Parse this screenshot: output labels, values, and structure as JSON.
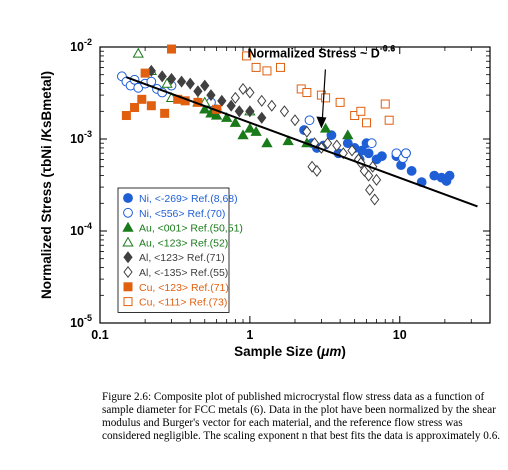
{
  "chart_data": {
    "type": "scatter",
    "xlabel_prefix": "Sample Size  (",
    "xlabel_unit": "μm",
    "xlabel_suffix": ")",
    "ylabel": "Normalized Stress  (τbNi /KsBmetal)",
    "xscale": "log",
    "yscale": "log",
    "xlim": [
      0.1,
      40
    ],
    "ylim": [
      1e-05,
      0.01
    ],
    "x_ticks": [
      0.1,
      1,
      10
    ],
    "x_tick_labels": [
      "0.1",
      "1",
      "10"
    ],
    "y_ticks": [
      1e-05,
      0.0001,
      0.001,
      0.01
    ],
    "y_tick_labels": [
      {
        "base": "10",
        "exp": "-5"
      },
      {
        "base": "10",
        "exp": "-4"
      },
      {
        "base": "10",
        "exp": "-3"
      },
      {
        "base": "10",
        "exp": "-2"
      }
    ],
    "grid": false,
    "legend_position": "bottom-left",
    "annotation": {
      "text_main": "Normalized Stress ~ D",
      "text_exp": "-0.6",
      "arrow_to": [
        3.0,
        0.0013
      ],
      "text_at": [
        3.0,
        0.0063
      ]
    },
    "fit_line": {
      "x": [
        0.15,
        33
      ],
      "y": [
        0.0047,
        0.000185
      ],
      "color": "#000000"
    },
    "series": [
      {
        "name": "Ni, <-269> Ref.(8,68)",
        "marker": "circle",
        "filled": true,
        "color": "#1f5fd6",
        "x": [
          2.3,
          2.6,
          2.8,
          3.1,
          3.5,
          3.9,
          4.5,
          5.0,
          5.6,
          6.2,
          7.0,
          7.6,
          9.5,
          10.2,
          11.0,
          12.0,
          17.0,
          19.0,
          20.5,
          21.5,
          14.0,
          6.0,
          5.4
        ],
        "y": [
          0.00125,
          0.0009,
          0.0008,
          0.00085,
          0.0011,
          0.0007,
          0.0009,
          0.0008,
          0.00075,
          0.0007,
          0.0006,
          0.00065,
          0.00065,
          0.00052,
          0.0007,
          0.00045,
          0.0004,
          0.00038,
          0.00035,
          0.0004,
          0.00034,
          0.0009,
          0.0006
        ]
      },
      {
        "name": "Ni, <556> Ref.(70)",
        "marker": "circle",
        "filled": false,
        "color": "#1f5fd6",
        "x": [
          0.14,
          0.15,
          0.16,
          0.17,
          0.18,
          0.2,
          0.22,
          0.24,
          0.26,
          0.3,
          0.55,
          0.6,
          2.5,
          6.5,
          9.5,
          10.5,
          11.0
        ],
        "y": [
          0.0048,
          0.0042,
          0.0038,
          0.0044,
          0.0036,
          0.004,
          0.0042,
          0.0035,
          0.0032,
          0.0038,
          0.0025,
          0.0021,
          0.0016,
          0.0009,
          0.0007,
          0.00062,
          0.0007
        ]
      },
      {
        "name": "Au, <001> Ref.(50,51)",
        "marker": "triangle",
        "filled": true,
        "color": "#1a7a1a",
        "x": [
          0.45,
          0.5,
          0.55,
          0.6,
          0.7,
          0.8,
          0.9,
          1.0,
          1.1,
          1.3,
          1.8,
          2.4,
          3.2,
          4.5
        ],
        "y": [
          0.0025,
          0.0021,
          0.0019,
          0.0018,
          0.0017,
          0.0015,
          0.0011,
          0.0013,
          0.0012,
          0.0009,
          0.00095,
          0.0009,
          0.0013,
          0.0011
        ]
      },
      {
        "name": "Au, <123> Ref.(52)",
        "marker": "triangle",
        "filled": false,
        "color": "#1a7a1a",
        "x": [
          0.18,
          0.22,
          0.28,
          0.3,
          0.5,
          1.0
        ],
        "y": [
          0.0085,
          0.0055,
          0.004,
          0.0028,
          0.0025,
          0.002
        ]
      },
      {
        "name": "Al, <123> Ref.(71)",
        "marker": "diamond",
        "filled": true,
        "color": "#404040",
        "x": [
          0.22,
          0.26,
          0.3,
          0.35,
          0.4,
          0.45,
          0.5,
          0.55,
          0.65,
          0.75,
          0.85,
          1.0,
          1.2
        ],
        "y": [
          0.0055,
          0.0048,
          0.0045,
          0.0042,
          0.004,
          0.0033,
          0.0038,
          0.003,
          0.0026,
          0.0023,
          0.002,
          0.002,
          0.0017
        ]
      },
      {
        "name": "Al, <-135> Ref.(55)",
        "marker": "diamond",
        "filled": false,
        "color": "#404040",
        "x": [
          0.8,
          0.9,
          1.0,
          1.2,
          1.4,
          1.7,
          2.0,
          2.4,
          2.7,
          3.0,
          3.3,
          3.8,
          4.2,
          4.8,
          5.3,
          5.8,
          6.2,
          6.6,
          7.0,
          2.6,
          2.8,
          6.3,
          6.8,
          5.5
        ],
        "y": [
          0.0028,
          0.0035,
          0.0032,
          0.0026,
          0.0023,
          0.002,
          0.0016,
          0.0012,
          0.0009,
          0.0008,
          0.0009,
          0.00085,
          0.0007,
          0.00075,
          0.0006,
          0.00045,
          0.0004,
          0.0005,
          0.00036,
          0.0005,
          0.00045,
          0.00028,
          0.00022,
          0.00055
        ]
      },
      {
        "name": "Cu, <123> Ref.(71)",
        "marker": "square",
        "filled": true,
        "color": "#e06010",
        "x": [
          0.15,
          0.17,
          0.19,
          0.2,
          0.22,
          0.27,
          0.3,
          0.33,
          0.37,
          0.45,
          0.6
        ],
        "y": [
          0.0018,
          0.0022,
          0.0027,
          0.0052,
          0.0023,
          0.0019,
          0.0095,
          0.0027,
          0.0026,
          0.0025,
          0.0021
        ]
      },
      {
        "name": "Cu, <111> Ref.(73)",
        "marker": "square",
        "filled": false,
        "color": "#e06010",
        "x": [
          0.95,
          1.1,
          1.3,
          1.6,
          2.2,
          2.4,
          3.0,
          3.2,
          4.0,
          5.0,
          5.5,
          6.0,
          8.0,
          8.5
        ],
        "y": [
          0.008,
          0.006,
          0.0055,
          0.006,
          0.0035,
          0.0032,
          0.003,
          0.0028,
          0.0025,
          0.0018,
          0.002,
          0.0015,
          0.0024,
          0.0016
        ]
      }
    ]
  },
  "caption": "Figure 2.6: Composite plot of published microcrystal flow stress data as a function of sample diameter for FCC metals (6).  Data in the plot have been normalized by the shear modulus and Burger's vector for each material, and the reference flow stress was considered negligible.  The scaling exponent n that best fits the data is approximately 0.6."
}
